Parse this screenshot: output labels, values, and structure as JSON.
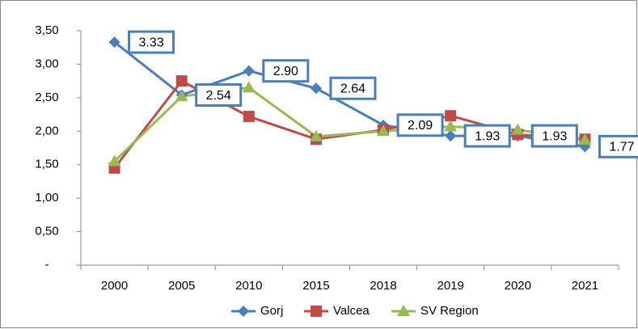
{
  "chart_data": {
    "type": "line",
    "categories": [
      "2000",
      "2005",
      "2010",
      "2015",
      "2018",
      "2019",
      "2020",
      "2021"
    ],
    "series": [
      {
        "name": "Gorj",
        "color": "#4a7ebb",
        "marker": "diamond",
        "values": [
          3.33,
          2.54,
          2.9,
          2.64,
          2.09,
          1.93,
          1.93,
          1.77
        ],
        "value_labels": [
          "3.33",
          "2.54",
          "2.90",
          "2.64",
          "2.09",
          "1.93",
          "1.93",
          "1.77"
        ]
      },
      {
        "name": "Valcea",
        "color": "#be4b48",
        "marker": "square",
        "values": [
          1.45,
          2.75,
          2.22,
          1.88,
          2.02,
          2.23,
          1.95,
          1.88
        ]
      },
      {
        "name": "SV Region",
        "color": "#98b954",
        "marker": "triangle",
        "values": [
          1.55,
          2.52,
          2.65,
          1.92,
          2.0,
          2.07,
          2.02,
          1.87
        ]
      }
    ],
    "ylim": [
      0,
      3.5
    ],
    "yticks": [
      {
        "value": 0,
        "label": "-"
      },
      {
        "value": 0.5,
        "label": "0,50"
      },
      {
        "value": 1,
        "label": "1,00"
      },
      {
        "value": 1.5,
        "label": "1,50"
      },
      {
        "value": 2,
        "label": "2,00"
      },
      {
        "value": 2.5,
        "label": "2,50"
      },
      {
        "value": 3,
        "label": "3,00"
      },
      {
        "value": 3.5,
        "label": "3,50"
      }
    ],
    "grid": false,
    "legend": "bottom"
  }
}
